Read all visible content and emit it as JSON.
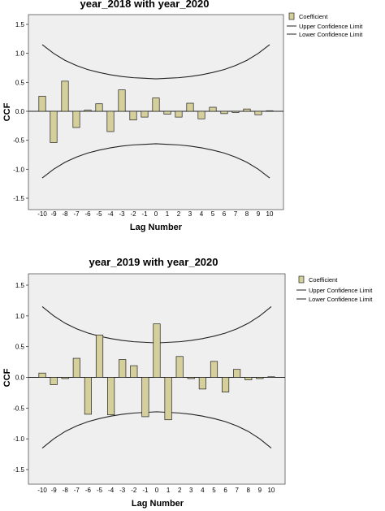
{
  "colors": {
    "bar_fill": "#d4cf9b",
    "bar_stroke": "#222222",
    "plot_bg": "#efefef",
    "line": "#222222"
  },
  "legend": {
    "coefficient": "Coefficient",
    "upper": "Upper Confidence Limit",
    "lower": "Lower Confidence Limit"
  },
  "chart_data": [
    {
      "type": "bar",
      "title": "year_2018 with year_2020",
      "xlabel": "Lag Number",
      "ylabel": "CCF",
      "ylim": [
        -1.5,
        1.5
      ],
      "yticks": [
        "1.5",
        "1.0",
        "0.5",
        "0.0",
        "-0.5",
        "-1.0",
        "-1.5"
      ],
      "categories": [
        "-10",
        "-9",
        "-8",
        "-7",
        "-6",
        "-5",
        "-4",
        "-3",
        "-2",
        "-1",
        "0",
        "1",
        "2",
        "3",
        "4",
        "5",
        "6",
        "7",
        "8",
        "9",
        "10"
      ],
      "series": [
        {
          "name": "Coefficient",
          "values": [
            0.26,
            -0.54,
            0.52,
            -0.28,
            0.02,
            0.13,
            -0.35,
            0.37,
            -0.15,
            -0.1,
            0.23,
            -0.05,
            -0.1,
            0.14,
            -0.13,
            0.07,
            -0.04,
            -0.02,
            0.04,
            -0.06,
            0.01
          ]
        },
        {
          "name": "Upper Confidence Limit",
          "values": [
            1.15,
            1.0,
            0.88,
            0.79,
            0.72,
            0.67,
            0.63,
            0.6,
            0.58,
            0.57,
            0.56,
            0.57,
            0.58,
            0.6,
            0.63,
            0.67,
            0.72,
            0.79,
            0.88,
            1.0,
            1.15
          ]
        },
        {
          "name": "Lower Confidence Limit",
          "values": [
            -1.15,
            -1.0,
            -0.88,
            -0.79,
            -0.72,
            -0.67,
            -0.63,
            -0.6,
            -0.58,
            -0.57,
            -0.56,
            -0.57,
            -0.58,
            -0.6,
            -0.63,
            -0.67,
            -0.72,
            -0.79,
            -0.88,
            -1.0,
            -1.15
          ]
        }
      ]
    },
    {
      "type": "bar",
      "title": "year_2019 with year_2020",
      "xlabel": "Lag Number",
      "ylabel": "CCF",
      "ylim": [
        -1.5,
        1.5
      ],
      "yticks": [
        "1.5",
        "1.0",
        "0.5",
        "0.0",
        "-0.5",
        "-1.0",
        "-1.5"
      ],
      "categories": [
        "-10",
        "-9",
        "-8",
        "-7",
        "-6",
        "-5",
        "-4",
        "-3",
        "-2",
        "-1",
        "0",
        "1",
        "2",
        "3",
        "4",
        "5",
        "6",
        "7",
        "8",
        "9",
        "10"
      ],
      "series": [
        {
          "name": "Coefficient",
          "values": [
            0.07,
            -0.12,
            -0.02,
            0.31,
            -0.6,
            0.69,
            -0.61,
            0.29,
            0.19,
            -0.64,
            0.87,
            -0.69,
            0.34,
            -0.02,
            -0.19,
            0.26,
            -0.24,
            0.13,
            -0.04,
            -0.02,
            0.01
          ]
        },
        {
          "name": "Upper Confidence Limit",
          "values": [
            1.15,
            1.0,
            0.88,
            0.79,
            0.72,
            0.67,
            0.63,
            0.6,
            0.58,
            0.57,
            0.56,
            0.57,
            0.58,
            0.6,
            0.63,
            0.67,
            0.72,
            0.79,
            0.88,
            1.0,
            1.15
          ]
        },
        {
          "name": "Lower Confidence Limit",
          "values": [
            -1.15,
            -1.0,
            -0.88,
            -0.79,
            -0.72,
            -0.67,
            -0.63,
            -0.6,
            -0.58,
            -0.57,
            -0.56,
            -0.57,
            -0.58,
            -0.6,
            -0.63,
            -0.67,
            -0.72,
            -0.79,
            -0.88,
            -1.0,
            -1.15
          ]
        }
      ]
    }
  ]
}
